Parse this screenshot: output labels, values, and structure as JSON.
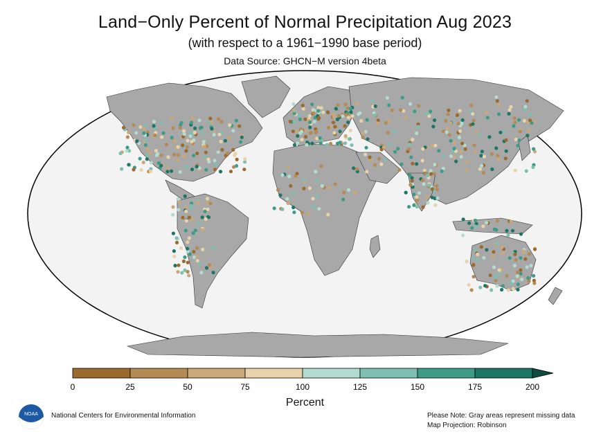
{
  "header": {
    "title": "Land−Only Percent of Normal Precipitation Aug 2023",
    "subtitle": "(with respect to a 1961−1990 base period)",
    "source": "Data Source: GHCN−M version 4beta"
  },
  "legend": {
    "title": "Percent",
    "ticks": [
      "0",
      "25",
      "50",
      "75",
      "100",
      "125",
      "150",
      "175",
      "200"
    ],
    "colors": [
      "#9b6a2e",
      "#b48a55",
      "#caa87a",
      "#e8d3aa",
      "#b2dccf",
      "#7fbfb1",
      "#3e9b88",
      "#1d7566"
    ],
    "arrow_color": "#0e4a3f",
    "missing_color": "#a8a8a8",
    "ocean_color": "#f3f3f3"
  },
  "footer": {
    "org": "National Centers for Environmental Information",
    "logo_text": "NOAA",
    "note": "Please Note: Gray areas represent missing data",
    "projection": "Map Projection: Robinson"
  }
}
